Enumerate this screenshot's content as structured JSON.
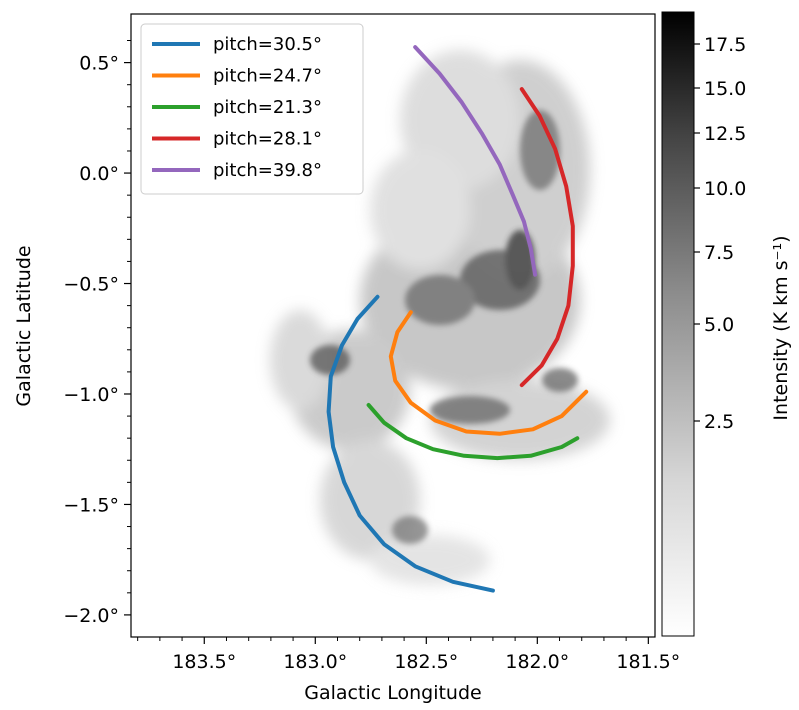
{
  "chart_data": {
    "type": "line",
    "title": "",
    "xlabel": "Galactic Longitude",
    "ylabel": "Galactic Latitude",
    "xlim": [
      183.83,
      181.47
    ],
    "ylim": [
      -2.1,
      0.72
    ],
    "x_ticks": [
      {
        "value": 183.5,
        "label": "183.5°"
      },
      {
        "value": 183.0,
        "label": "183.0°"
      },
      {
        "value": 182.5,
        "label": "182.5°"
      },
      {
        "value": 182.0,
        "label": "182.0°"
      },
      {
        "value": 181.5,
        "label": "181.5°"
      }
    ],
    "y_ticks": [
      {
        "value": 0.5,
        "label": "0.5°"
      },
      {
        "value": 0.0,
        "label": "0.0°"
      },
      {
        "value": -0.5,
        "label": "−0.5°"
      },
      {
        "value": -1.0,
        "label": "−1.0°"
      },
      {
        "value": -1.5,
        "label": "−1.5°"
      },
      {
        "value": -2.0,
        "label": "−2.0°"
      }
    ],
    "background_image": "grayscale integrated intensity map (gray_r colormap)",
    "legend_position": "upper left",
    "series": [
      {
        "name": "pitch=30.5°",
        "color": "#1f77b4",
        "points": [
          [
            182.72,
            -0.56
          ],
          [
            182.81,
            -0.66
          ],
          [
            182.88,
            -0.78
          ],
          [
            182.93,
            -0.92
          ],
          [
            182.94,
            -1.08
          ],
          [
            182.92,
            -1.24
          ],
          [
            182.87,
            -1.4
          ],
          [
            182.8,
            -1.55
          ],
          [
            182.69,
            -1.68
          ],
          [
            182.55,
            -1.78
          ],
          [
            182.38,
            -1.85
          ],
          [
            182.2,
            -1.89
          ]
        ]
      },
      {
        "name": "pitch=24.7°",
        "color": "#ff7f0e",
        "points": [
          [
            182.57,
            -0.63
          ],
          [
            182.63,
            -0.72
          ],
          [
            182.66,
            -0.83
          ],
          [
            182.64,
            -0.94
          ],
          [
            182.57,
            -1.04
          ],
          [
            182.46,
            -1.12
          ],
          [
            182.32,
            -1.17
          ],
          [
            182.17,
            -1.18
          ],
          [
            182.02,
            -1.16
          ],
          [
            181.89,
            -1.1
          ],
          [
            181.78,
            -0.99
          ]
        ]
      },
      {
        "name": "pitch=21.3°",
        "color": "#2ca02c",
        "points": [
          [
            182.76,
            -1.05
          ],
          [
            182.69,
            -1.13
          ],
          [
            182.59,
            -1.2
          ],
          [
            182.47,
            -1.25
          ],
          [
            182.33,
            -1.28
          ],
          [
            182.18,
            -1.29
          ],
          [
            182.03,
            -1.28
          ],
          [
            181.89,
            -1.24
          ],
          [
            181.82,
            -1.2
          ]
        ]
      },
      {
        "name": "pitch=28.1°",
        "color": "#d62728",
        "points": [
          [
            182.07,
            0.38
          ],
          [
            181.99,
            0.26
          ],
          [
            181.92,
            0.11
          ],
          [
            181.87,
            -0.06
          ],
          [
            181.84,
            -0.24
          ],
          [
            181.84,
            -0.42
          ],
          [
            181.86,
            -0.6
          ],
          [
            181.91,
            -0.75
          ],
          [
            181.98,
            -0.87
          ],
          [
            182.07,
            -0.96
          ]
        ]
      },
      {
        "name": "pitch=39.8°",
        "color": "#9467bd",
        "points": [
          [
            182.55,
            0.57
          ],
          [
            182.44,
            0.45
          ],
          [
            182.34,
            0.32
          ],
          [
            182.25,
            0.18
          ],
          [
            182.17,
            0.04
          ],
          [
            182.11,
            -0.1
          ],
          [
            182.06,
            -0.22
          ],
          [
            182.03,
            -0.34
          ],
          [
            182.01,
            -0.46
          ]
        ]
      }
    ]
  },
  "colorbar": {
    "label": "Intensity (K km s⁻¹)",
    "colormap": "gray_r",
    "ticks": [
      {
        "value": 17.5,
        "label": "17.5"
      },
      {
        "value": 15.0,
        "label": "15.0"
      },
      {
        "value": 12.5,
        "label": "12.5"
      },
      {
        "value": 10.0,
        "label": "10.0"
      },
      {
        "value": 7.5,
        "label": "7.5"
      },
      {
        "value": 5.0,
        "label": "5.0"
      },
      {
        "value": 2.5,
        "label": "2.5"
      }
    ]
  }
}
